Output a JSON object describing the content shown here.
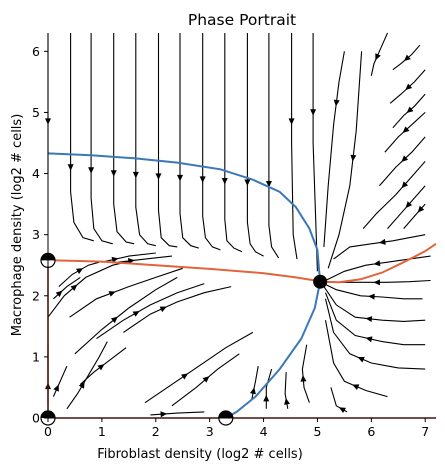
{
  "chart_data": {
    "type": "line",
    "title": "Phase Portrait",
    "xlabel": "Fibroblast density (log2 # cells)",
    "ylabel": "Macrophage density (log2 # cells)",
    "xlim": [
      0,
      7.2
    ],
    "ylim": [
      0,
      6.3
    ],
    "xticks": [
      0,
      1,
      2,
      3,
      4,
      5,
      6,
      7
    ],
    "yticks": [
      0,
      1,
      2,
      3,
      4,
      5,
      6
    ],
    "grid": false,
    "legend": "none",
    "colors": {
      "blue": "#3b78b8",
      "orange": "#e2643c",
      "red": "#c0392b",
      "stream": "#000000"
    },
    "series": [
      {
        "color": "blue",
        "x": [
          0.0,
          0.8,
          1.6,
          2.4,
          3.2,
          3.8,
          4.3,
          4.6,
          4.85,
          5.0,
          5.05,
          4.95,
          4.7,
          4.3,
          3.85,
          3.5,
          3.3
        ],
        "y": [
          4.33,
          4.3,
          4.25,
          4.18,
          4.07,
          3.9,
          3.7,
          3.45,
          3.1,
          2.75,
          2.23,
          1.8,
          1.3,
          0.8,
          0.35,
          0.1,
          0.0
        ]
      },
      {
        "color": "orange",
        "x": [
          0.0,
          0.5,
          1.0,
          2.0,
          3.0,
          4.0,
          4.6,
          5.1,
          5.4,
          5.8,
          6.2,
          6.6,
          7.0,
          7.2
        ],
        "y": [
          2.58,
          2.57,
          2.56,
          2.5,
          2.44,
          2.37,
          2.3,
          2.23,
          2.22,
          2.27,
          2.38,
          2.55,
          2.73,
          2.85
        ]
      },
      {
        "color": "red",
        "x": [
          0.0,
          7.2
        ],
        "y": [
          0.0,
          0.0
        ]
      },
      {
        "color": "red",
        "x": [
          0.0,
          0.0
        ],
        "y": [
          0.0,
          2.58
        ]
      }
    ],
    "fixed_points": [
      {
        "x": 5.05,
        "y": 2.23,
        "style": "filled"
      },
      {
        "x": 0.0,
        "y": 2.58,
        "style": "half"
      },
      {
        "x": 0.0,
        "y": 0.0,
        "style": "half"
      },
      {
        "x": 3.3,
        "y": 0.0,
        "style": "half"
      }
    ],
    "streamlines": [
      [
        [
          0.0,
          6.3
        ],
        [
          0.0,
          5.2
        ],
        [
          0.0,
          4.5
        ],
        [
          0.0,
          4.0
        ]
      ],
      [
        [
          0.42,
          6.3
        ],
        [
          0.42,
          5.2
        ],
        [
          0.42,
          4.5
        ],
        [
          0.42,
          3.7
        ],
        [
          0.48,
          3.2
        ],
        [
          0.65,
          2.95
        ],
        [
          0.85,
          2.9
        ]
      ],
      [
        [
          0.8,
          6.3
        ],
        [
          0.8,
          5.2
        ],
        [
          0.8,
          4.5
        ],
        [
          0.8,
          3.6
        ],
        [
          0.85,
          3.1
        ],
        [
          1.0,
          2.9
        ],
        [
          1.2,
          2.85
        ]
      ],
      [
        [
          1.22,
          6.3
        ],
        [
          1.22,
          5.2
        ],
        [
          1.22,
          4.5
        ],
        [
          1.22,
          3.5
        ],
        [
          1.28,
          3.05
        ],
        [
          1.45,
          2.88
        ],
        [
          1.6,
          2.85
        ]
      ],
      [
        [
          1.63,
          6.3
        ],
        [
          1.63,
          5.2
        ],
        [
          1.63,
          4.5
        ],
        [
          1.63,
          3.45
        ],
        [
          1.7,
          3.0
        ],
        [
          1.85,
          2.85
        ],
        [
          2.0,
          2.82
        ]
      ],
      [
        [
          2.05,
          6.3
        ],
        [
          2.05,
          5.2
        ],
        [
          2.05,
          4.5
        ],
        [
          2.05,
          3.4
        ],
        [
          2.1,
          2.95
        ],
        [
          2.25,
          2.82
        ],
        [
          2.4,
          2.8
        ]
      ],
      [
        [
          2.45,
          6.3
        ],
        [
          2.45,
          5.2
        ],
        [
          2.45,
          4.5
        ],
        [
          2.45,
          3.35
        ],
        [
          2.5,
          2.95
        ],
        [
          2.65,
          2.82
        ],
        [
          2.8,
          2.78
        ]
      ],
      [
        [
          2.87,
          6.3
        ],
        [
          2.87,
          5.2
        ],
        [
          2.87,
          4.5
        ],
        [
          2.87,
          3.3
        ],
        [
          2.92,
          2.95
        ],
        [
          3.05,
          2.8
        ],
        [
          3.2,
          2.75
        ]
      ],
      [
        [
          3.28,
          6.3
        ],
        [
          3.28,
          5.2
        ],
        [
          3.28,
          4.5
        ],
        [
          3.28,
          3.25
        ],
        [
          3.32,
          2.9
        ],
        [
          3.45,
          2.78
        ],
        [
          3.6,
          2.72
        ]
      ],
      [
        [
          3.7,
          6.3
        ],
        [
          3.7,
          5.2
        ],
        [
          3.7,
          4.5
        ],
        [
          3.7,
          3.2
        ],
        [
          3.75,
          2.85
        ],
        [
          3.85,
          2.72
        ],
        [
          4.0,
          2.65
        ]
      ],
      [
        [
          4.1,
          6.3
        ],
        [
          4.1,
          5.2
        ],
        [
          4.1,
          4.5
        ],
        [
          4.1,
          3.15
        ],
        [
          4.15,
          2.8
        ],
        [
          4.28,
          2.62
        ]
      ],
      [
        [
          4.52,
          6.3
        ],
        [
          4.52,
          5.2
        ],
        [
          4.52,
          4.5
        ],
        [
          4.55,
          3.0
        ],
        [
          4.62,
          2.6
        ]
      ],
      [
        [
          4.92,
          6.3
        ],
        [
          4.92,
          5.5
        ],
        [
          4.92,
          4.5
        ],
        [
          4.97,
          3.2
        ],
        [
          5.0,
          2.4
        ]
      ],
      [
        [
          5.5,
          6.0
        ],
        [
          5.4,
          5.5
        ],
        [
          5.3,
          4.8
        ],
        [
          5.2,
          3.8
        ],
        [
          5.12,
          2.8
        ]
      ],
      [
        [
          5.82,
          6.0
        ],
        [
          5.78,
          5.5
        ],
        [
          5.72,
          4.7
        ],
        [
          5.6,
          3.8
        ],
        [
          5.4,
          3.0
        ],
        [
          5.2,
          2.45
        ]
      ],
      [
        [
          6.3,
          6.3
        ],
        [
          6.15,
          6.0
        ],
        [
          6.05,
          5.8
        ],
        [
          6.0,
          5.6
        ]
      ],
      [
        [
          6.9,
          6.1
        ],
        [
          6.75,
          5.95
        ],
        [
          6.55,
          5.8
        ],
        [
          6.4,
          5.7
        ]
      ],
      [
        [
          7.0,
          5.7
        ],
        [
          6.8,
          5.5
        ],
        [
          6.55,
          5.3
        ],
        [
          6.35,
          5.15
        ]
      ],
      [
        [
          7.0,
          5.3
        ],
        [
          6.8,
          5.1
        ],
        [
          6.6,
          4.95
        ],
        [
          6.4,
          4.75
        ]
      ],
      [
        [
          7.0,
          5.0
        ],
        [
          6.75,
          4.8
        ],
        [
          6.5,
          4.6
        ],
        [
          6.25,
          4.35
        ]
      ],
      [
        [
          7.0,
          4.6
        ],
        [
          6.75,
          4.35
        ],
        [
          6.45,
          4.1
        ],
        [
          6.15,
          3.8
        ]
      ],
      [
        [
          7.0,
          4.2
        ],
        [
          6.75,
          3.95
        ],
        [
          6.45,
          3.65
        ],
        [
          6.1,
          3.35
        ],
        [
          5.85,
          3.1
        ]
      ],
      [
        [
          7.0,
          3.8
        ],
        [
          6.8,
          3.6
        ],
        [
          6.55,
          3.35
        ],
        [
          6.3,
          3.1
        ]
      ],
      [
        [
          7.0,
          3.5
        ],
        [
          6.8,
          3.3
        ],
        [
          6.6,
          3.1
        ]
      ],
      [
        [
          7.0,
          3.0
        ],
        [
          6.7,
          2.95
        ],
        [
          6.4,
          2.9
        ],
        [
          6.0,
          2.85
        ],
        [
          5.6,
          2.8
        ],
        [
          5.3,
          2.6
        ]
      ],
      [
        [
          7.1,
          2.65
        ],
        [
          6.7,
          2.6
        ],
        [
          6.3,
          2.55
        ],
        [
          5.9,
          2.5
        ],
        [
          5.5,
          2.4
        ],
        [
          5.15,
          2.25
        ]
      ],
      [
        [
          7.1,
          2.25
        ],
        [
          6.7,
          2.23
        ],
        [
          6.3,
          2.22
        ],
        [
          5.9,
          2.22
        ],
        [
          5.4,
          2.22
        ],
        [
          5.12,
          2.22
        ]
      ],
      [
        [
          6.95,
          1.95
        ],
        [
          6.6,
          1.95
        ],
        [
          6.2,
          1.98
        ],
        [
          5.8,
          2.0
        ],
        [
          5.35,
          2.1
        ],
        [
          5.12,
          2.2
        ]
      ],
      [
        [
          7.0,
          1.6
        ],
        [
          6.6,
          1.58
        ],
        [
          6.2,
          1.6
        ],
        [
          5.7,
          1.65
        ],
        [
          5.35,
          1.85
        ],
        [
          5.12,
          2.15
        ]
      ],
      [
        [
          7.0,
          1.2
        ],
        [
          6.6,
          1.2
        ],
        [
          6.2,
          1.25
        ],
        [
          5.7,
          1.35
        ],
        [
          5.35,
          1.6
        ],
        [
          5.15,
          2.05
        ]
      ],
      [
        [
          7.0,
          0.8
        ],
        [
          6.5,
          0.82
        ],
        [
          6.0,
          0.9
        ],
        [
          5.6,
          1.05
        ],
        [
          5.3,
          1.4
        ],
        [
          5.15,
          1.95
        ]
      ],
      [
        [
          6.3,
          0.35
        ],
        [
          5.9,
          0.45
        ],
        [
          5.5,
          0.6
        ],
        [
          5.3,
          0.9
        ],
        [
          5.15,
          1.6
        ]
      ],
      [
        [
          5.55,
          0.1
        ],
        [
          5.35,
          0.2
        ],
        [
          5.25,
          0.5
        ]
      ],
      [
        [
          4.85,
          0.25
        ],
        [
          4.75,
          0.5
        ],
        [
          4.72,
          0.8
        ],
        [
          4.8,
          1.2
        ]
      ],
      [
        [
          4.45,
          0.15
        ],
        [
          4.4,
          0.4
        ],
        [
          4.42,
          0.75
        ]
      ],
      [
        [
          4.05,
          0.15
        ],
        [
          4.05,
          0.5
        ],
        [
          4.15,
          0.8
        ]
      ],
      [
        [
          3.78,
          0.3
        ],
        [
          3.85,
          0.6
        ],
        [
          3.9,
          0.85
        ]
      ],
      [
        [
          0.0,
          0.25
        ],
        [
          0.0,
          0.8
        ],
        [
          0.0,
          1.2
        ]
      ],
      [
        [
          0.1,
          0.35
        ],
        [
          0.25,
          0.65
        ],
        [
          0.35,
          0.85
        ]
      ],
      [
        [
          0.35,
          0.15
        ],
        [
          0.55,
          0.4
        ],
        [
          0.75,
          0.7
        ],
        [
          0.95,
          1.0
        ],
        [
          1.1,
          1.25
        ]
      ],
      [
        [
          0.6,
          0.55
        ],
        [
          0.85,
          0.75
        ],
        [
          1.15,
          0.95
        ],
        [
          1.45,
          1.15
        ]
      ],
      [
        [
          0.5,
          1.05
        ],
        [
          1.0,
          1.45
        ],
        [
          1.5,
          1.8
        ],
        [
          2.0,
          2.1
        ],
        [
          2.4,
          2.3
        ]
      ],
      [
        [
          0.9,
          1.3
        ],
        [
          1.4,
          1.6
        ],
        [
          1.9,
          1.85
        ],
        [
          2.4,
          2.05
        ],
        [
          2.9,
          2.2
        ]
      ],
      [
        [
          1.4,
          1.4
        ],
        [
          1.9,
          1.7
        ],
        [
          2.4,
          1.9
        ],
        [
          2.9,
          2.05
        ],
        [
          3.4,
          2.15
        ]
      ],
      [
        [
          0.4,
          1.65
        ],
        [
          0.9,
          1.95
        ],
        [
          1.5,
          2.15
        ],
        [
          2.0,
          2.3
        ],
        [
          2.5,
          2.45
        ]
      ],
      [
        [
          0.0,
          1.65
        ],
        [
          0.3,
          2.0
        ],
        [
          0.7,
          2.3
        ],
        [
          1.2,
          2.5
        ],
        [
          1.6,
          2.58
        ]
      ],
      [
        [
          0.1,
          1.95
        ],
        [
          0.35,
          2.15
        ],
        [
          0.6,
          2.3
        ]
      ],
      [
        [
          1.0,
          2.55
        ],
        [
          1.5,
          2.65
        ],
        [
          2.0,
          2.7
        ]
      ],
      [
        [
          1.3,
          2.55
        ],
        [
          1.8,
          2.6
        ],
        [
          2.3,
          2.65
        ]
      ],
      [
        [
          0.2,
          2.15
        ],
        [
          0.45,
          2.35
        ],
        [
          0.75,
          2.5
        ],
        [
          0.95,
          2.55
        ]
      ],
      [
        [
          1.8,
          0.25
        ],
        [
          2.3,
          0.55
        ],
        [
          2.8,
          0.85
        ],
        [
          3.3,
          1.15
        ],
        [
          3.8,
          1.4
        ]
      ],
      [
        [
          2.3,
          0.2
        ],
        [
          2.75,
          0.5
        ],
        [
          3.15,
          0.8
        ],
        [
          3.55,
          1.05
        ]
      ],
      [
        [
          1.9,
          0.05
        ],
        [
          2.4,
          0.08
        ],
        [
          2.9,
          0.1
        ]
      ]
    ]
  }
}
